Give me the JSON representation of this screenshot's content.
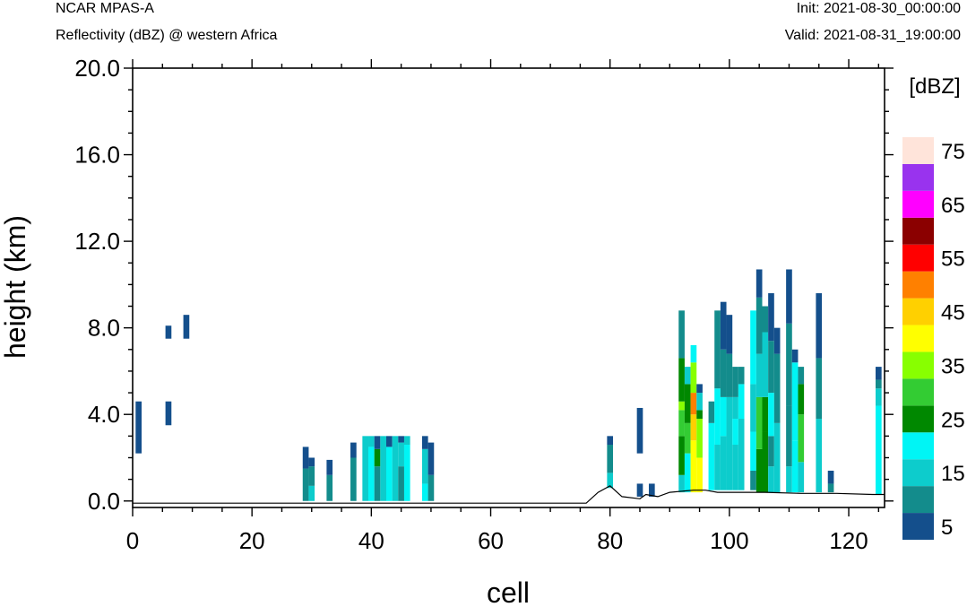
{
  "header": {
    "model": "NCAR MPAS-A",
    "field": "Reflectivity (dBZ) @ western Africa",
    "init": "Init: 2021-08-30_00:00:00",
    "valid": "Valid: 2021-08-31_19:00:00"
  },
  "chart_data": {
    "type": "heatmap",
    "xlabel": "cell",
    "ylabel": "height (km)",
    "xlim": [
      0,
      126
    ],
    "ylim": [
      -0.3,
      20.0
    ],
    "x_ticks": [
      "0",
      "20",
      "40",
      "60",
      "80",
      "100",
      "120"
    ],
    "y_ticks": [
      "0.0",
      "4.0",
      "8.0",
      "12.0",
      "16.0",
      "20.0"
    ],
    "colorbar": {
      "unit": "[dBZ]",
      "levels": [
        5,
        10,
        15,
        20,
        25,
        30,
        35,
        40,
        45,
        50,
        55,
        60,
        65,
        70,
        75
      ],
      "colors": [
        "#144f8c",
        "#138c8c",
        "#0dcccc",
        "#00f5f5",
        "#008800",
        "#33cc33",
        "#88ff00",
        "#ffff00",
        "#ffd000",
        "#ff8000",
        "#ff0000",
        "#8b0000",
        "#ff00ff",
        "#9933ee",
        "#ffe4da"
      ],
      "labels": [
        "5",
        "15",
        "25",
        "35",
        "45",
        "55",
        "65",
        "75"
      ]
    },
    "terrain": [
      [
        0,
        -0.1
      ],
      [
        76,
        -0.1
      ],
      [
        78,
        0.4
      ],
      [
        80,
        0.7
      ],
      [
        82,
        0.2
      ],
      [
        85,
        0.1
      ],
      [
        86,
        0.3
      ],
      [
        88,
        0.2
      ],
      [
        90,
        0.4
      ],
      [
        94,
        0.5
      ],
      [
        96,
        0.5
      ],
      [
        98,
        0.4
      ],
      [
        106,
        0.4
      ],
      [
        112,
        0.35
      ],
      [
        118,
        0.35
      ],
      [
        124,
        0.3
      ],
      [
        126,
        0.3
      ]
    ],
    "columns": [
      {
        "x": 1,
        "s": [
          [
            2.2,
            4.6,
            5
          ]
        ]
      },
      {
        "x": 6,
        "s": [
          [
            3.5,
            4.6,
            5
          ],
          [
            7.5,
            8.1,
            5
          ]
        ]
      },
      {
        "x": 9,
        "s": [
          [
            7.5,
            8.6,
            5
          ]
        ]
      },
      {
        "x": 29,
        "s": [
          [
            0,
            1.5,
            10
          ],
          [
            1.5,
            2.5,
            5
          ]
        ]
      },
      {
        "x": 30,
        "s": [
          [
            0,
            0.7,
            15
          ],
          [
            0.7,
            1.6,
            10
          ],
          [
            1.6,
            2.0,
            5
          ]
        ]
      },
      {
        "x": 33,
        "s": [
          [
            0,
            1.2,
            10
          ],
          [
            1.2,
            1.9,
            5
          ]
        ]
      },
      {
        "x": 37,
        "s": [
          [
            0,
            2.0,
            10
          ],
          [
            2.0,
            2.7,
            5
          ]
        ]
      },
      {
        "x": 39,
        "s": [
          [
            0,
            3.0,
            15
          ]
        ]
      },
      {
        "x": 40,
        "s": [
          [
            0,
            2.5,
            20
          ],
          [
            2.5,
            3.0,
            15
          ]
        ]
      },
      {
        "x": 41,
        "s": [
          [
            0,
            1.6,
            10
          ],
          [
            1.6,
            2.4,
            25
          ],
          [
            2.4,
            3.0,
            5
          ]
        ]
      },
      {
        "x": 42,
        "s": [
          [
            0,
            3.0,
            15
          ]
        ]
      },
      {
        "x": 43,
        "s": [
          [
            0,
            2.5,
            20
          ],
          [
            2.5,
            3.0,
            5
          ]
        ]
      },
      {
        "x": 44,
        "s": [
          [
            0,
            3.0,
            15
          ]
        ]
      },
      {
        "x": 45,
        "s": [
          [
            0,
            1.6,
            10
          ],
          [
            1.6,
            2.7,
            15
          ],
          [
            2.7,
            3.0,
            5
          ]
        ]
      },
      {
        "x": 46,
        "s": [
          [
            0,
            2.6,
            20
          ],
          [
            2.6,
            3.0,
            15
          ]
        ]
      },
      {
        "x": 49,
        "s": [
          [
            0,
            0.8,
            20
          ],
          [
            0.8,
            2.4,
            15
          ],
          [
            2.4,
            3.0,
            5
          ]
        ]
      },
      {
        "x": 50,
        "s": [
          [
            0,
            1.2,
            10
          ],
          [
            1.2,
            2.7,
            5
          ]
        ]
      },
      {
        "x": 80,
        "s": [
          [
            0.6,
            1.3,
            15
          ],
          [
            1.3,
            2.6,
            10
          ],
          [
            2.6,
            3.0,
            5
          ]
        ]
      },
      {
        "x": 85,
        "s": [
          [
            0.2,
            0.8,
            5
          ],
          [
            2.2,
            4.3,
            5
          ]
        ]
      },
      {
        "x": 87,
        "s": [
          [
            0.2,
            0.8,
            5
          ]
        ]
      },
      {
        "x": 92,
        "s": [
          [
            0.4,
            1.2,
            15
          ],
          [
            1.2,
            3.0,
            25
          ],
          [
            3.0,
            4.2,
            30
          ],
          [
            4.2,
            4.6,
            35
          ],
          [
            4.6,
            6.6,
            25
          ],
          [
            6.6,
            8.8,
            10
          ]
        ]
      },
      {
        "x": 93,
        "s": [
          [
            0.4,
            2.2,
            20
          ],
          [
            2.2,
            3.6,
            30
          ],
          [
            3.6,
            5.4,
            25
          ],
          [
            5.4,
            6.2,
            15
          ]
        ]
      },
      {
        "x": 94,
        "s": [
          [
            0.4,
            2.8,
            40
          ],
          [
            2.8,
            4.0,
            45
          ],
          [
            4.0,
            5.0,
            50
          ],
          [
            5.0,
            6.4,
            35
          ],
          [
            6.4,
            7.2,
            20
          ]
        ]
      },
      {
        "x": 95,
        "s": [
          [
            0.4,
            2.0,
            40
          ],
          [
            2.0,
            3.8,
            35
          ],
          [
            3.8,
            4.2,
            25
          ],
          [
            4.2,
            5.0,
            15
          ],
          [
            5.0,
            5.4,
            5
          ]
        ]
      },
      {
        "x": 97,
        "s": [
          [
            0.5,
            3.6,
            20
          ],
          [
            3.6,
            4.6,
            10
          ]
        ]
      },
      {
        "x": 98,
        "s": [
          [
            0.5,
            2.6,
            15
          ],
          [
            2.6,
            5.2,
            20
          ],
          [
            5.2,
            8.8,
            10
          ]
        ]
      },
      {
        "x": 99,
        "s": [
          [
            0.5,
            3.0,
            15
          ],
          [
            3.0,
            4.8,
            20
          ],
          [
            4.8,
            7.0,
            10
          ],
          [
            7.0,
            9.2,
            5
          ]
        ]
      },
      {
        "x": 100,
        "s": [
          [
            0.5,
            4.8,
            15
          ],
          [
            4.8,
            6.8,
            10
          ],
          [
            6.8,
            8.6,
            5
          ]
        ]
      },
      {
        "x": 101,
        "s": [
          [
            0.5,
            2.6,
            15
          ],
          [
            2.6,
            3.8,
            20
          ],
          [
            3.8,
            4.8,
            15
          ],
          [
            4.8,
            6.2,
            10
          ]
        ]
      },
      {
        "x": 102,
        "s": [
          [
            0.5,
            3.8,
            15
          ],
          [
            3.8,
            5.4,
            20
          ],
          [
            5.4,
            6.2,
            10
          ]
        ]
      },
      {
        "x": 104,
        "s": [
          [
            0.5,
            1.4,
            10
          ],
          [
            1.4,
            3.2,
            20
          ],
          [
            3.2,
            5.4,
            15
          ],
          [
            5.4,
            8.8,
            20
          ]
        ]
      },
      {
        "x": 105,
        "s": [
          [
            0.4,
            2.4,
            25
          ],
          [
            2.4,
            4.8,
            30
          ],
          [
            4.8,
            6.8,
            15
          ],
          [
            6.8,
            9.4,
            10
          ],
          [
            9.4,
            10.7,
            5
          ]
        ]
      },
      {
        "x": 106,
        "s": [
          [
            0.4,
            3.2,
            25
          ],
          [
            3.2,
            4.8,
            25
          ],
          [
            4.8,
            7.8,
            15
          ],
          [
            7.8,
            9.0,
            10
          ]
        ]
      },
      {
        "x": 107,
        "s": [
          [
            0.4,
            1.6,
            15
          ],
          [
            1.6,
            3.0,
            10
          ],
          [
            3.0,
            5.0,
            20
          ],
          [
            5.0,
            7.4,
            10
          ],
          [
            7.4,
            9.6,
            5
          ]
        ]
      },
      {
        "x": 108,
        "s": [
          [
            0.4,
            3.6,
            15
          ],
          [
            3.6,
            6.8,
            10
          ],
          [
            6.8,
            8.0,
            5
          ]
        ]
      },
      {
        "x": 110,
        "s": [
          [
            0.4,
            1.6,
            15
          ],
          [
            1.6,
            4.4,
            10
          ],
          [
            4.4,
            8.2,
            10
          ],
          [
            8.2,
            10.7,
            5
          ]
        ]
      },
      {
        "x": 111,
        "s": [
          [
            0.4,
            2.8,
            20
          ],
          [
            2.8,
            6.4,
            20
          ],
          [
            6.4,
            7.0,
            5
          ]
        ]
      },
      {
        "x": 112,
        "s": [
          [
            0.4,
            1.8,
            15
          ],
          [
            1.8,
            4.0,
            30
          ],
          [
            4.0,
            5.4,
            25
          ],
          [
            5.4,
            6.2,
            10
          ]
        ]
      },
      {
        "x": 115,
        "s": [
          [
            0.4,
            3.8,
            15
          ],
          [
            3.8,
            6.6,
            10
          ],
          [
            6.6,
            9.6,
            5
          ]
        ]
      },
      {
        "x": 117,
        "s": [
          [
            0.4,
            0.8,
            10
          ],
          [
            0.8,
            1.4,
            5
          ]
        ]
      },
      {
        "x": 125,
        "s": [
          [
            0.3,
            4.4,
            20
          ],
          [
            4.4,
            5.2,
            15
          ],
          [
            5.2,
            5.6,
            10
          ],
          [
            5.6,
            6.2,
            5
          ]
        ]
      }
    ]
  }
}
